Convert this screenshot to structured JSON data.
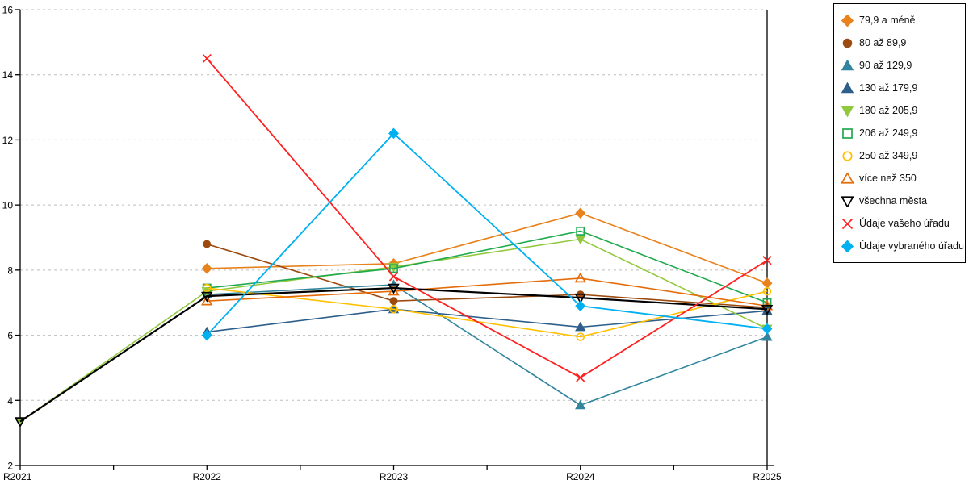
{
  "chart_data": {
    "type": "line",
    "title": "",
    "xlabel": "",
    "ylabel": "",
    "x": [
      "R2021",
      "R2022",
      "R2023",
      "R2024",
      "R2025"
    ],
    "ylim": [
      2,
      16
    ],
    "yticks": [
      2,
      4,
      6,
      8,
      10,
      12,
      14,
      16
    ],
    "grid": "horizontal-dashed",
    "legend_position": "right-outside",
    "series": [
      {
        "name": "79,9 a méně",
        "marker": "diamond",
        "fill": "solid",
        "color": "#E8821D",
        "values": [
          null,
          8.05,
          8.2,
          9.75,
          7.6
        ]
      },
      {
        "name": "80 až 89,9",
        "marker": "circle",
        "fill": "solid",
        "color": "#9C4A0F",
        "values": [
          null,
          8.8,
          7.05,
          7.25,
          6.85
        ]
      },
      {
        "name": "90 až 129,9",
        "marker": "triangle-up",
        "fill": "solid",
        "color": "#31859C",
        "values": [
          null,
          7.25,
          7.55,
          3.85,
          5.95
        ]
      },
      {
        "name": "130 až 179,9",
        "marker": "triangle-up",
        "fill": "solid",
        "color": "#2D5F8B",
        "values": [
          null,
          6.1,
          6.8,
          6.25,
          6.75
        ]
      },
      {
        "name": "180 až 205,9",
        "marker": "triangle-down",
        "fill": "solid",
        "color": "#92C83E",
        "values": [
          3.35,
          7.35,
          8.1,
          8.95,
          6.2
        ]
      },
      {
        "name": "206 až 249,9",
        "marker": "square",
        "fill": "open",
        "color": "#21A94F",
        "values": [
          null,
          7.45,
          8.05,
          9.2,
          7.0
        ]
      },
      {
        "name": "250 až 349,9",
        "marker": "circle",
        "fill": "open",
        "color": "#FFC000",
        "values": [
          null,
          7.45,
          6.8,
          5.95,
          7.35
        ]
      },
      {
        "name": "více než 350",
        "marker": "triangle-up",
        "fill": "open",
        "color": "#E46C0A",
        "values": [
          null,
          7.05,
          7.35,
          7.75,
          6.9
        ]
      },
      {
        "name": "všechna města",
        "marker": "triangle-down",
        "fill": "open",
        "color": "#000000",
        "values": [
          3.35,
          7.2,
          7.45,
          7.15,
          6.8
        ]
      },
      {
        "name": "Údaje vašeho úřadu",
        "marker": "x",
        "fill": "line",
        "color": "#FF2121",
        "values": [
          null,
          14.5,
          7.8,
          4.7,
          8.3
        ]
      },
      {
        "name": "Údaje vybraného úřadu",
        "marker": "diamond",
        "fill": "solid",
        "color": "#00B0F0",
        "values": [
          null,
          6.0,
          12.2,
          6.9,
          6.2
        ]
      }
    ]
  },
  "colors": {
    "grid": "#bdbdbd",
    "axis": "#000000",
    "background": "#ffffff"
  }
}
